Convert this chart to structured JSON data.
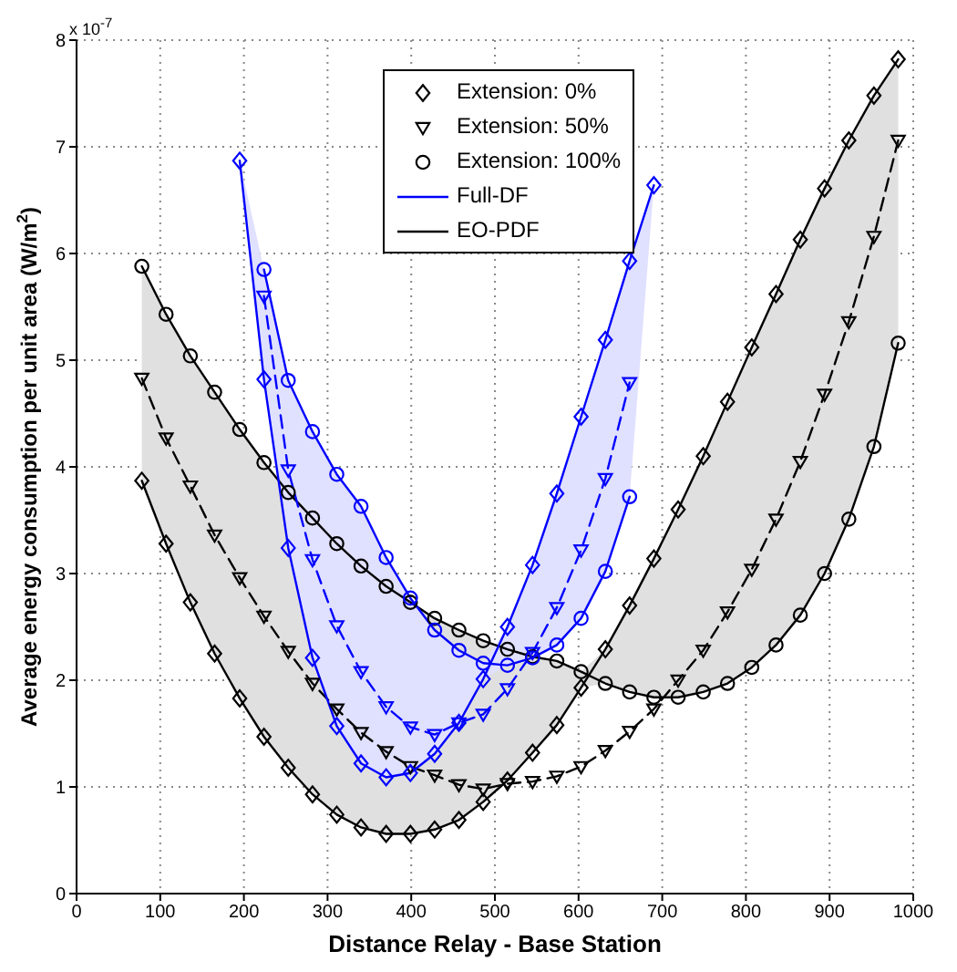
{
  "chart_data": {
    "type": "line",
    "xlabel": "Distance Relay - Base Station",
    "ylabel": "Average energy consumption per unit area (W/m$^{2}$)",
    "annotations": [
      "x 10$^{-7}$",
      "EO-PDF"
    ],
    "x": [
      78,
      107,
      136,
      165,
      195,
      224,
      253,
      282,
      311,
      340,
      370,
      399,
      428,
      457,
      486,
      515,
      545,
      574,
      603,
      632,
      661,
      690,
      719,
      749,
      778,
      807,
      836,
      865,
      894,
      923,
      953,
      982
    ],
    "xlim": [
      0,
      1000
    ],
    "xticks": [
      0,
      100,
      200,
      300,
      400,
      500,
      600,
      700,
      800,
      900,
      1000
    ],
    "ylim": [
      0,
      8
    ],
    "yticks": [
      0,
      1,
      2,
      3,
      4,
      5,
      6,
      7,
      8
    ],
    "grid": true,
    "legend": "top",
    "series": [
      {
        "name": "Extension: 0%",
        "color": "#000000",
        "marker": "diamond",
        "line_style": "solid",
        "values": [
          3.87,
          3.28,
          2.73,
          2.25,
          1.83,
          1.47,
          1.18,
          0.93,
          0.74,
          0.62,
          0.56,
          0.56,
          0.6,
          0.69,
          0.86,
          1.06,
          1.32,
          1.58,
          1.93,
          2.29,
          2.7,
          3.14,
          3.6,
          4.1,
          4.61,
          5.12,
          5.62,
          6.13,
          6.61,
          7.06,
          7.48,
          7.82
        ]
      },
      {
        "name": "Extension: 50%",
        "color": "#000000",
        "marker": "triangle",
        "line_style": "dashed",
        "values": [
          4.83,
          4.27,
          3.82,
          3.36,
          2.96,
          2.6,
          2.27,
          1.97,
          1.73,
          1.51,
          1.33,
          1.19,
          1.11,
          1.02,
          0.98,
          1.03,
          1.05,
          1.1,
          1.19,
          1.34,
          1.52,
          1.73,
          2.0,
          2.28,
          2.64,
          3.04,
          3.51,
          4.05,
          4.68,
          5.36,
          6.16,
          7.06
        ],
        "lower": [
          3.87,
          3.28,
          2.73,
          2.25,
          1.83,
          1.47,
          1.18,
          0.93,
          0.74,
          0.62,
          0.56,
          0.56,
          0.6,
          0.69,
          0.86,
          1.06,
          1.32,
          1.58,
          1.93,
          1.97,
          1.89,
          1.84,
          1.84,
          1.89,
          1.97,
          2.12,
          2.33,
          2.61,
          3.0,
          3.51,
          4.19,
          5.16
        ],
        "upper": [
          5.88,
          5.43,
          5.04,
          4.7,
          4.35,
          4.04,
          3.76,
          3.52,
          3.28,
          3.07,
          2.88,
          2.73,
          2.58,
          2.47,
          2.37,
          2.29,
          2.22,
          2.18,
          2.08,
          2.29,
          2.7,
          3.14,
          3.6,
          4.1,
          4.61,
          5.12,
          5.62,
          6.13,
          6.61,
          7.06,
          7.48,
          7.82
        ]
      },
      {
        "name": "Extension: 100%",
        "color": "#000000",
        "marker": "circle",
        "line_style": "solid",
        "values": [
          5.88,
          5.43,
          5.04,
          4.7,
          4.35,
          4.04,
          3.76,
          3.52,
          3.28,
          3.07,
          2.88,
          2.73,
          2.58,
          2.47,
          2.37,
          2.29,
          2.22,
          2.18,
          2.08,
          1.97,
          1.89,
          1.84,
          1.84,
          1.89,
          1.97,
          2.12,
          2.33,
          2.61,
          3.0,
          3.51,
          4.19,
          5.16
        ]
      },
      {
        "name": "Full-DF",
        "color": "#0000ff",
        "marker": "diamond",
        "line_style": "solid",
        "values": [
          null,
          null,
          null,
          null,
          6.87,
          4.82,
          3.24,
          2.21,
          1.57,
          1.22,
          1.09,
          1.13,
          1.31,
          1.6,
          2.01,
          2.5,
          3.08,
          3.75,
          4.47,
          5.19,
          5.93,
          6.64,
          null,
          null,
          null,
          null,
          null,
          null,
          null,
          null,
          null,
          null
        ]
      },
      {
        "color": "#0000ff",
        "marker": "triangle",
        "line_style": "dashed",
        "values": [
          null,
          null,
          null,
          null,
          null,
          5.6,
          3.97,
          3.13,
          2.51,
          2.08,
          1.75,
          1.56,
          1.49,
          1.6,
          1.68,
          1.92,
          2.26,
          2.68,
          3.22,
          3.89,
          4.79,
          null,
          null,
          null,
          null,
          null,
          null,
          null,
          null,
          null,
          null,
          null
        ],
        "lower": [
          null,
          null,
          null,
          null,
          6.87,
          4.82,
          3.24,
          2.21,
          1.57,
          1.22,
          1.09,
          1.13,
          1.31,
          1.6,
          2.01,
          2.14,
          2.21,
          2.33,
          2.58,
          3.02,
          3.72,
          6.64,
          null,
          null,
          null,
          null,
          null,
          null,
          null,
          null,
          null,
          null
        ],
        "upper": [
          null,
          null,
          null,
          null,
          6.87,
          5.85,
          4.81,
          4.33,
          3.93,
          3.63,
          3.15,
          2.77,
          2.47,
          2.28,
          2.16,
          2.5,
          3.08,
          3.75,
          4.47,
          5.19,
          5.93,
          6.64,
          null,
          null,
          null,
          null,
          null,
          null,
          null,
          null,
          null,
          null
        ]
      },
      {
        "color": "#0000ff",
        "marker": "circle",
        "line_style": "solid",
        "values": [
          null,
          null,
          null,
          null,
          null,
          5.85,
          4.81,
          4.33,
          3.93,
          3.63,
          3.15,
          2.77,
          2.47,
          2.28,
          2.16,
          2.14,
          2.21,
          2.33,
          2.58,
          3.02,
          3.72,
          null,
          null,
          null,
          null,
          null,
          null,
          null,
          null,
          null,
          null,
          null
        ]
      }
    ]
  }
}
